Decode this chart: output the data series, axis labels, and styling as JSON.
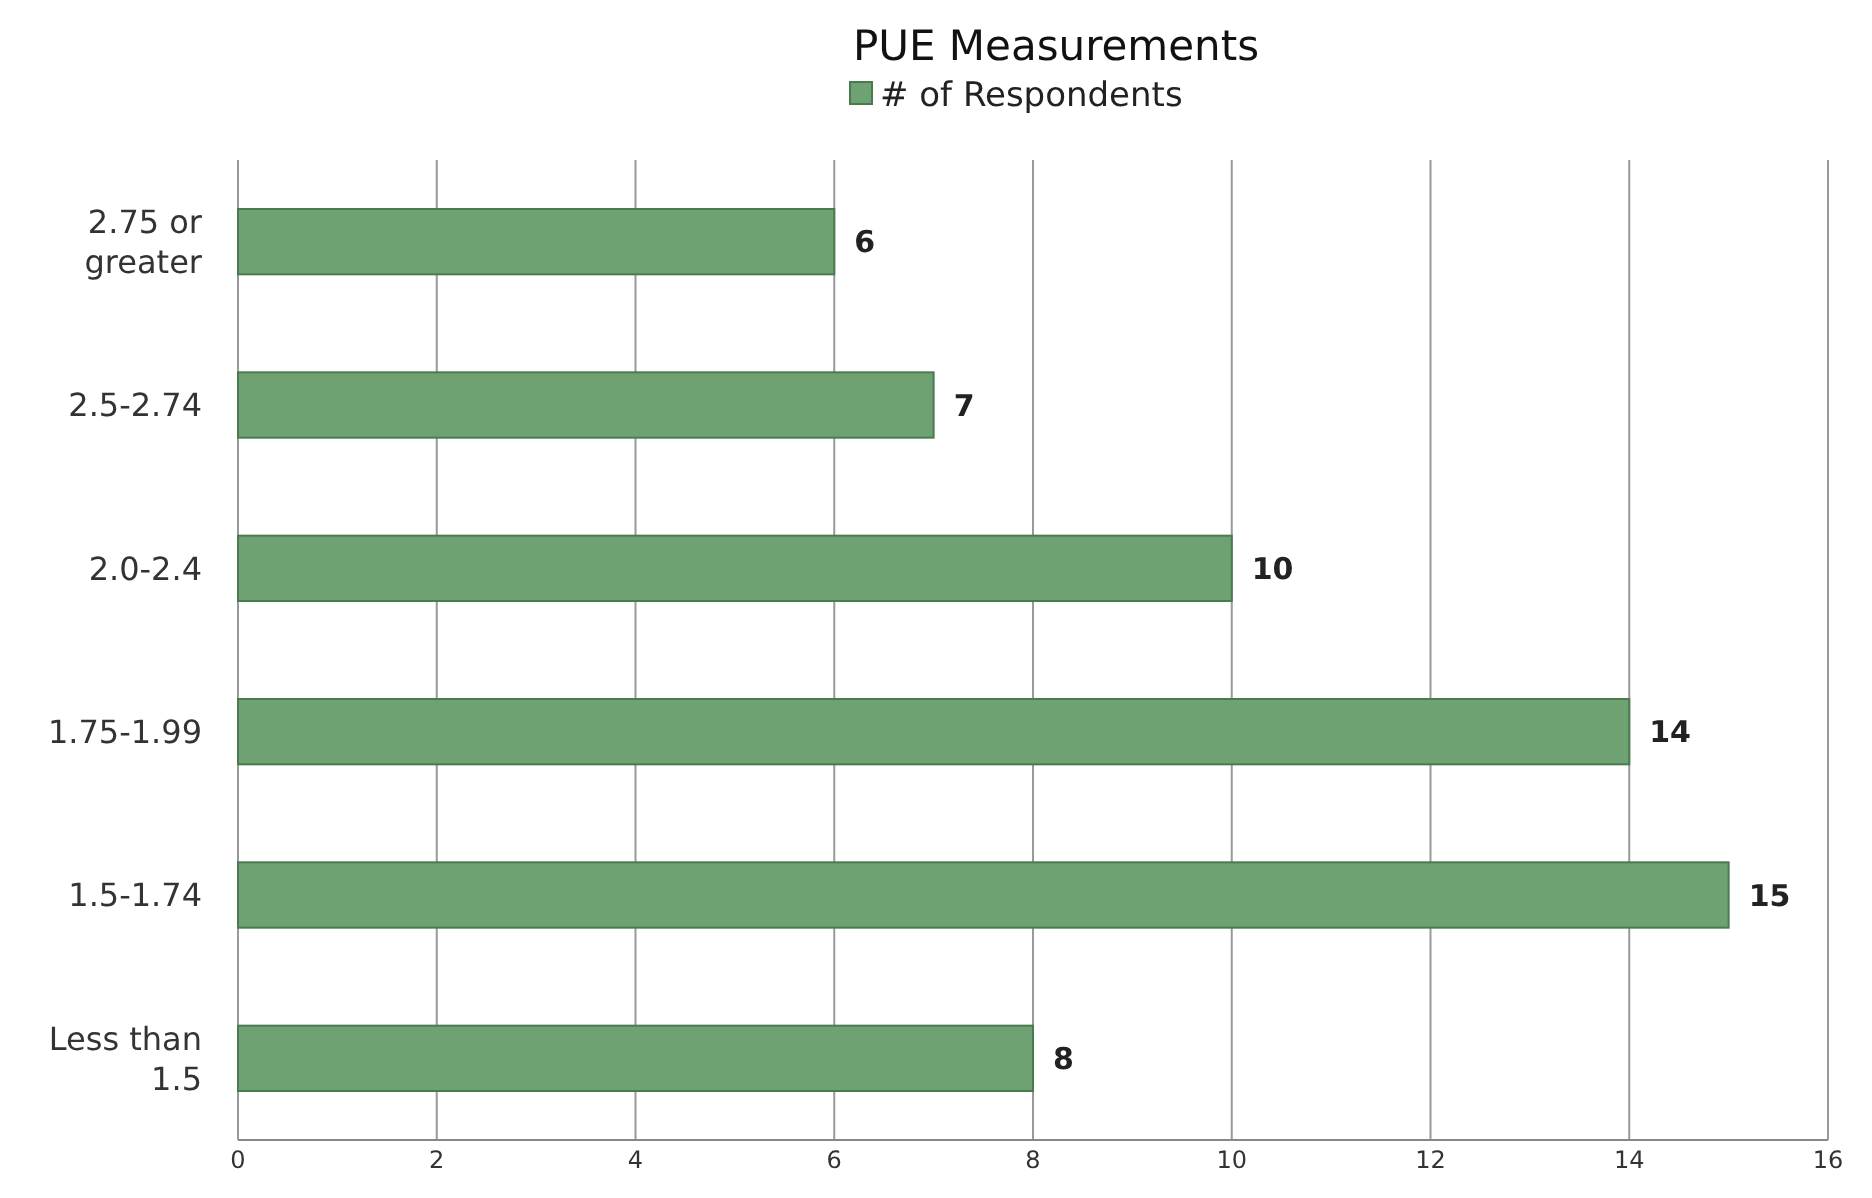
{
  "chart_data": {
    "type": "bar",
    "orientation": "horizontal",
    "title": "PUE Measurements",
    "categories": [
      "2.75 or greater",
      "2.5-2.74",
      "2.0-2.4",
      "1.75-1.99",
      "1.5-1.74",
      "Less than 1.5"
    ],
    "series": [
      {
        "name": "# of Respondents",
        "color": "#6fa273",
        "values": [
          6,
          7,
          10,
          14,
          15,
          8
        ]
      }
    ],
    "xlim": [
      0,
      16
    ],
    "xticks": [
      0,
      2,
      4,
      6,
      8,
      10,
      12,
      14,
      16
    ],
    "grid": "x",
    "legend": "top",
    "data_labels": true
  }
}
